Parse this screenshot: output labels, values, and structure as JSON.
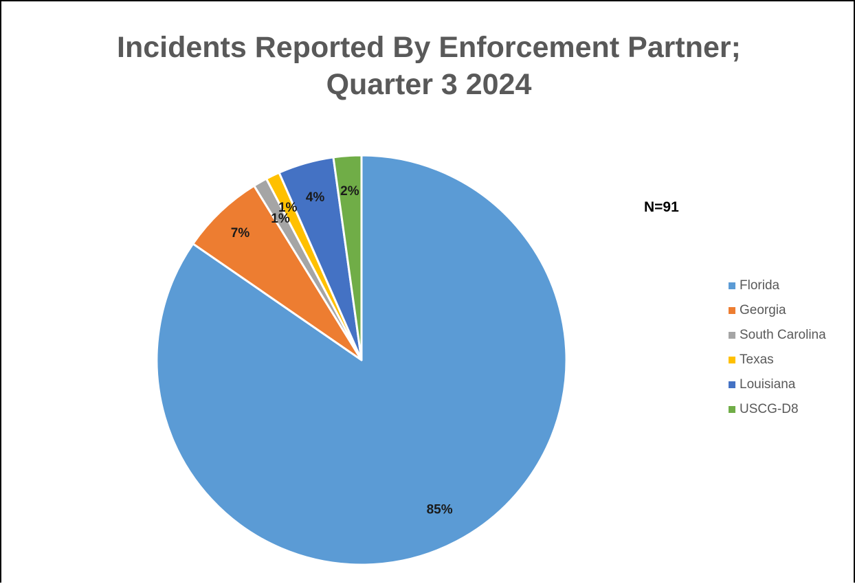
{
  "chart_data": {
    "type": "pie",
    "title_lines": [
      "Incidents Reported By Enforcement Partner;",
      "Quarter 3 2024"
    ],
    "annotation": "N=91",
    "legend_position": "right",
    "slices": [
      {
        "name": "Florida",
        "value": 77,
        "label": "85%",
        "color": "#5B9BD5"
      },
      {
        "name": "Georgia",
        "value": 6,
        "label": "7%",
        "color": "#ED7D31"
      },
      {
        "name": "South Carolina",
        "value": 1,
        "label": "1%",
        "color": "#A5A5A5"
      },
      {
        "name": "Texas",
        "value": 1,
        "label": "1%",
        "color": "#FFC000"
      },
      {
        "name": "Louisiana",
        "value": 4,
        "label": "4%",
        "color": "#4472C4"
      },
      {
        "name": "USCG-D8",
        "value": 2,
        "label": "2%",
        "color": "#70AD47"
      }
    ]
  }
}
